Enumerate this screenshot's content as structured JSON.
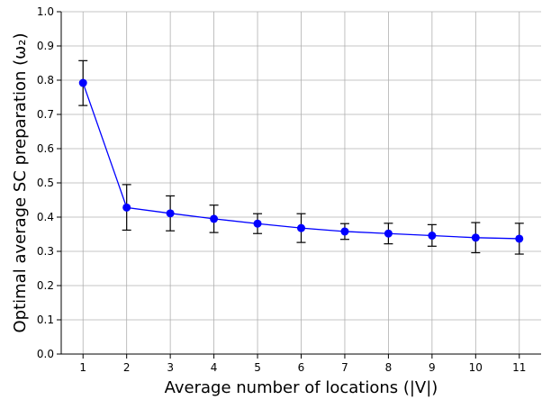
{
  "chart_data": {
    "type": "line",
    "title": "",
    "xlabel": "Average number of locations (|V|)",
    "ylabel": "Optimal average SC preparation (ω₂)",
    "x": [
      1,
      2,
      3,
      4,
      5,
      6,
      7,
      8,
      9,
      10,
      11
    ],
    "xlim": [
      0.5,
      11.5
    ],
    "ylim": [
      0.0,
      1.0
    ],
    "xticks": [
      "1",
      "2",
      "3",
      "4",
      "5",
      "6",
      "7",
      "8",
      "9",
      "10",
      "11"
    ],
    "yticks": [
      "0.0",
      "0.1",
      "0.2",
      "0.3",
      "0.4",
      "0.5",
      "0.6",
      "0.7",
      "0.8",
      "0.9",
      "1.0"
    ],
    "grid": true,
    "series": [
      {
        "values": [
          0.792,
          0.428,
          0.411,
          0.395,
          0.381,
          0.368,
          0.358,
          0.352,
          0.346,
          0.34,
          0.337
        ],
        "err_low": [
          0.726,
          0.362,
          0.36,
          0.355,
          0.352,
          0.326,
          0.335,
          0.322,
          0.315,
          0.296,
          0.292
        ],
        "err_high": [
          0.857,
          0.495,
          0.462,
          0.435,
          0.41,
          0.41,
          0.381,
          0.382,
          0.378,
          0.384,
          0.382
        ],
        "color": "#0000ff",
        "marker": "circle"
      }
    ],
    "error_bar_color": "#000000"
  }
}
